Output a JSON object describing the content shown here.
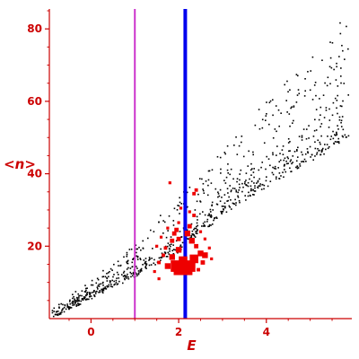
{
  "chart_data": {
    "type": "scatter",
    "title": "",
    "xlabel": "E",
    "ylabel": "<n>",
    "xlim": [
      -0.95,
      5.95
    ],
    "ylim": [
      0,
      85.5
    ],
    "x_ticks": [
      0,
      2,
      4
    ],
    "y_ticks": [
      20,
      40,
      60,
      80
    ],
    "grid": false,
    "legend": "none",
    "axis_color": "#cc0000",
    "vertical_lines": [
      {
        "x": 1.0,
        "color": "#cc33cc"
      },
      {
        "x": 2.15,
        "color": "#0000ee"
      }
    ],
    "background_points": {
      "color": "#000000",
      "lower_band": {
        "x_range": [
          -0.9,
          5.9
        ],
        "y_at": [
          [
            -0.9,
            0.5
          ],
          [
            0,
            6
          ],
          [
            1,
            12
          ],
          [
            2,
            19
          ],
          [
            3,
            29
          ],
          [
            4,
            37
          ],
          [
            5,
            44
          ],
          [
            5.9,
            50
          ]
        ]
      },
      "upper_band": {
        "x_range": [
          -0.9,
          5.9
        ],
        "y_at": [
          [
            -0.9,
            2
          ],
          [
            0,
            10
          ],
          [
            1,
            20
          ],
          [
            2,
            34
          ],
          [
            3,
            46
          ],
          [
            4,
            60
          ],
          [
            5,
            73
          ],
          [
            5.9,
            85
          ]
        ]
      }
    },
    "highlight_points": {
      "color": "#ee0000",
      "points": [
        {
          "x": 1.95,
          "y": 14.5,
          "size": 4
        },
        {
          "x": 2.05,
          "y": 14.0,
          "size": 5
        },
        {
          "x": 2.15,
          "y": 14.0,
          "size": 5
        },
        {
          "x": 2.25,
          "y": 14.5,
          "size": 4
        },
        {
          "x": 2.35,
          "y": 16.5,
          "size": 3
        },
        {
          "x": 2.1,
          "y": 16.0,
          "size": 3
        },
        {
          "x": 2.6,
          "y": 17.5,
          "size": 2
        },
        {
          "x": 2.5,
          "y": 18.0,
          "size": 2
        },
        {
          "x": 1.75,
          "y": 14.5,
          "size": 2
        },
        {
          "x": 1.85,
          "y": 17.0,
          "size": 2
        },
        {
          "x": 2.0,
          "y": 19.0,
          "size": 2
        },
        {
          "x": 2.3,
          "y": 21.5,
          "size": 2
        },
        {
          "x": 2.2,
          "y": 23.5,
          "size": 2
        },
        {
          "x": 1.9,
          "y": 23.5,
          "size": 1.5
        },
        {
          "x": 2.25,
          "y": 25.5,
          "size": 1.5
        },
        {
          "x": 1.95,
          "y": 24.5,
          "size": 1.5
        },
        {
          "x": 1.85,
          "y": 21.5,
          "size": 1.5
        },
        {
          "x": 2.0,
          "y": 22.0,
          "size": 1.5
        },
        {
          "x": 2.4,
          "y": 20.0,
          "size": 1.5
        },
        {
          "x": 1.7,
          "y": 19.5,
          "size": 1.2
        },
        {
          "x": 1.65,
          "y": 17.5,
          "size": 1.2
        },
        {
          "x": 1.55,
          "y": 15.5,
          "size": 1.2
        },
        {
          "x": 2.45,
          "y": 13.5,
          "size": 1.2
        },
        {
          "x": 1.45,
          "y": 13.0,
          "size": 1.0
        },
        {
          "x": 1.55,
          "y": 11.0,
          "size": 1.0
        },
        {
          "x": 1.5,
          "y": 20.0,
          "size": 1.0
        },
        {
          "x": 2.35,
          "y": 28.5,
          "size": 1.2
        },
        {
          "x": 2.35,
          "y": 34.5,
          "size": 1.2
        },
        {
          "x": 2.4,
          "y": 35.5,
          "size": 1.2
        },
        {
          "x": 1.75,
          "y": 25.0,
          "size": 1.0
        },
        {
          "x": 2.0,
          "y": 26.5,
          "size": 1.0
        },
        {
          "x": 2.5,
          "y": 24.0,
          "size": 1.0
        },
        {
          "x": 2.6,
          "y": 22.0,
          "size": 1.0
        },
        {
          "x": 1.8,
          "y": 37.5,
          "size": 1.0
        },
        {
          "x": 2.25,
          "y": 29.5,
          "size": 1.0
        },
        {
          "x": 2.05,
          "y": 30.5,
          "size": 1.0
        },
        {
          "x": 1.6,
          "y": 22.5,
          "size": 1.0
        },
        {
          "x": 2.7,
          "y": 19.5,
          "size": 1.0
        },
        {
          "x": 2.75,
          "y": 16.5,
          "size": 1.0
        },
        {
          "x": 2.55,
          "y": 15.5,
          "size": 1.5
        }
      ]
    }
  }
}
